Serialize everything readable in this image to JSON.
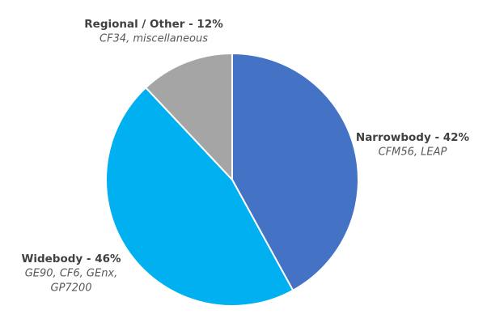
{
  "chart_data": {
    "type": "pie",
    "values": [
      42,
      46,
      12
    ],
    "value_labels": [
      "Narrowbody - 42%",
      "Widebody - 46%",
      "Regional / Other - 12%"
    ],
    "descriptions": [
      [
        "CFM56, LEAP"
      ],
      [
        "GE90, CF6, GEnx,",
        "GP7200"
      ],
      [
        "CF34, miscellaneous"
      ]
    ],
    "colors": [
      "#4472c4",
      "#00b0f0",
      "#a5a5a5"
    ]
  }
}
